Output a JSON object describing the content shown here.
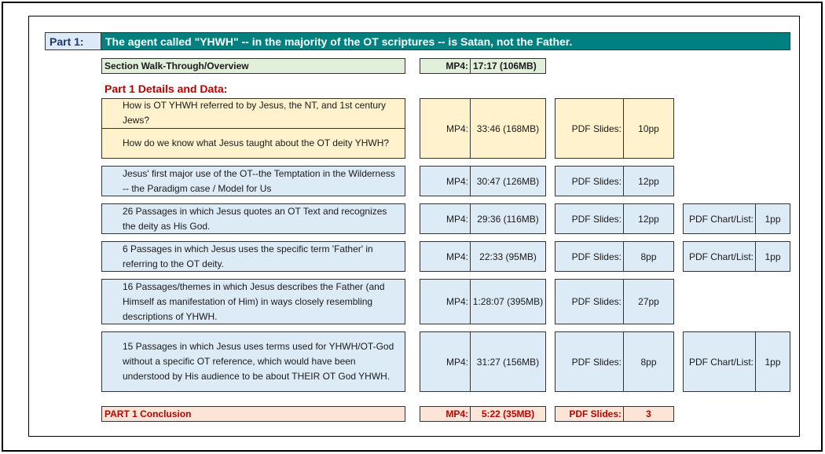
{
  "header": {
    "part_label": "Part 1:",
    "title": "The agent called \"YHWH\" -- in the majority of the OT scriptures -- is Satan, not the Father."
  },
  "overview": {
    "label": "Section Walk-Through/Overview",
    "mp4_label": "MP4:",
    "mp4_value": "17:17 (106MB)"
  },
  "details_heading": "Part 1 Details and Data:",
  "rows": [
    {
      "desc": [
        "How is OT YHWH referred to by Jesus, the NT, and 1st century Jews?",
        "How do we know what Jesus taught about the OT deity YHWH?"
      ],
      "mp4_label": "MP4:",
      "mp4": "33:46 (168MB)",
      "pdf_label": "PDF Slides:",
      "pdf": "10pp",
      "color": "yellow"
    },
    {
      "desc": [
        "Jesus' first major use of the OT--the Temptation in the Wilderness -- the Paradigm case / Model for Us"
      ],
      "mp4_label": "MP4:",
      "mp4": "30:47 (126MB)",
      "pdf_label": "PDF Slides:",
      "pdf": "12pp",
      "color": "blue"
    },
    {
      "desc": [
        "26 Passages in which Jesus quotes an OT Text and recognizes the deity as His God."
      ],
      "mp4_label": "MP4:",
      "mp4": "29:36 (116MB)",
      "pdf_label": "PDF Slides:",
      "pdf": "12pp",
      "chart_label": "PDF Chart/List:",
      "chart": "1pp",
      "color": "blue"
    },
    {
      "desc": [
        "6 Passages in which Jesus uses the specific term 'Father' in referring to the OT deity."
      ],
      "mp4_label": "MP4:",
      "mp4": "22:33 (95MB)",
      "pdf_label": "PDF Slides:",
      "pdf": "8pp",
      "chart_label": "PDF Chart/List:",
      "chart": "1pp",
      "color": "blue"
    },
    {
      "desc": [
        "16 Passages/themes in which Jesus describes the Father (and Himself as manifestation of Him) in ways closely resembling descriptions of YHWH."
      ],
      "mp4_label": "MP4:",
      "mp4": "1:28:07 (395MB)",
      "pdf_label": "PDF Slides:",
      "pdf": "27pp",
      "color": "blue"
    },
    {
      "desc": [
        "15 Passages in which Jesus uses terms used for YHWH/OT-God without a specific OT reference, which would have been understood by His audience to be about THEIR OT God YHWH."
      ],
      "mp4_label": "MP4:",
      "mp4": "31:27 (156MB)",
      "pdf_label": "PDF Slides:",
      "pdf": "8pp",
      "chart_label": "PDF Chart/List:",
      "chart": "1pp",
      "color": "blue"
    }
  ],
  "conclusion": {
    "label": "PART 1 Conclusion",
    "mp4_label": "MP4:",
    "mp4": "5:22 (35MB)",
    "pdf_label": "PDF Slides:",
    "pdf": "3"
  },
  "colors": {
    "header": "#008080",
    "overview": "#e2efda",
    "yellow": "#fff2cc",
    "blue": "#ddebf7",
    "conclusion": "#fce4d6",
    "red_text": "#c00000"
  }
}
